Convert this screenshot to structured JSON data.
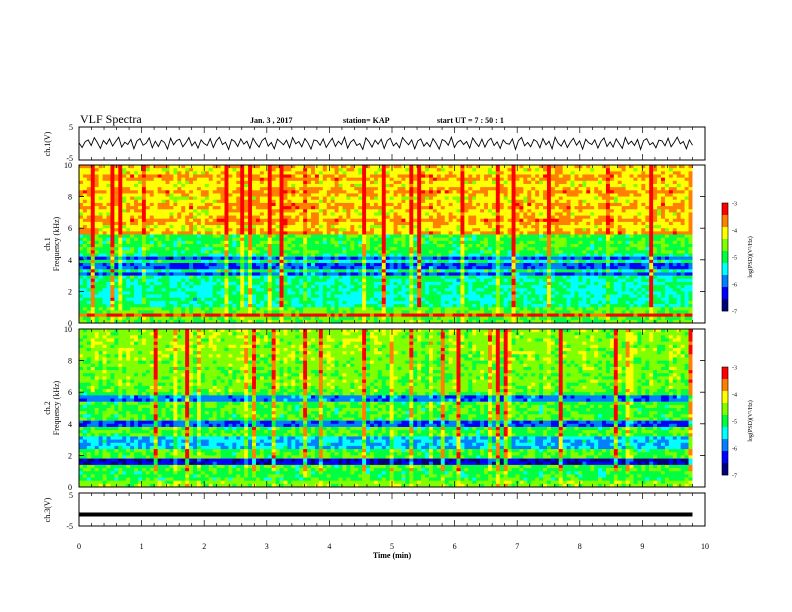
{
  "header": {
    "title": "VLF Spectra",
    "date": "Jan. 3 , 2017",
    "station": "station= KAP",
    "start_ut": "start UT =  7 : 50 : 1"
  },
  "chart_data": [
    {
      "id": "ch1-waveform",
      "type": "line",
      "ylabel": "ch.1(V)",
      "ylim": [
        -5,
        5
      ],
      "yticks": [
        "5",
        "-5"
      ],
      "xlim": [
        0,
        10
      ],
      "series": [
        {
          "values_note": "noisy waveform, roughly between -2 and 2 V with spikes",
          "x_step_min": 0.05,
          "y": [
            0.2,
            -1.2,
            0.5,
            1.1,
            -0.6,
            1.8,
            0.3,
            -1.5,
            0.9,
            -0.2,
            1.4,
            -0.8,
            0.6,
            1.9,
            -1.1,
            0.4,
            -0.3,
            1.2,
            -1.6,
            0.8,
            1.5,
            -0.5,
            0.1,
            1.7,
            -1.3,
            0.7,
            -0.9,
            1.0,
            0.3,
            -1.7,
            1.6,
            -0.4,
            0.9,
            1.3,
            -1.0,
            0.2,
            1.8,
            -0.7,
            0.5,
            -1.4,
            1.1,
            0.0,
            -0.6,
            1.5,
            -1.2,
            0.8,
            1.9,
            -0.3,
            0.4,
            -1.8,
            1.2,
            0.6,
            -0.9,
            1.4,
            -0.2,
            0.7,
            -1.5,
            1.6,
            0.1,
            -1.1,
            0.9,
            1.7,
            -0.8,
            0.3,
            -1.6,
            1.3,
            0.5,
            -0.4,
            1.0,
            -1.3,
            1.8,
            -0.1,
            0.6,
            -1.0,
            1.5,
            0.2,
            -1.7,
            1.1,
            0.8,
            -0.5,
            1.4,
            -1.2,
            0.3,
            1.6,
            -0.9,
            0.7,
            -0.3,
            1.9,
            -1.4,
            0.4,
            1.2,
            -0.6,
            0.0,
            -1.8,
            1.7,
            0.5,
            -1.1,
            1.0,
            -0.2,
            1.3,
            -1.5,
            0.9,
            1.6,
            -0.7,
            0.2,
            -1.3,
            1.8,
            0.6,
            -0.4,
            1.1,
            -1.6,
            0.8,
            1.4,
            -0.8,
            0.3,
            -1.0,
            1.5,
            0.1,
            -1.7,
            1.2,
            0.7,
            -0.5,
            1.9,
            -1.2,
            0.4,
            1.0,
            -0.3,
            0.6,
            -1.4,
            1.7,
            0.2,
            -0.9,
            1.3,
            -1.1,
            0.8,
            1.6,
            -0.6,
            0.5,
            -1.5,
            1.1,
            0.0,
            -0.2,
            1.4,
            -1.8,
            0.9,
            1.8,
            -0.7,
            0.3,
            -1.0,
            1.2,
            0.6,
            -1.3,
            1.5,
            -0.4,
            0.7,
            -1.6,
            1.9,
            0.1,
            -0.8,
            1.0,
            -1.2,
            0.4,
            1.6,
            -0.5,
            0.8,
            -1.7,
            1.3,
            0.2,
            -0.3,
            1.1,
            -1.4,
            0.6,
            1.7,
            -0.9,
            0.5,
            -1.1,
            1.4,
            0.0,
            -1.5,
            1.8,
            -0.2,
            0.7,
            -0.6,
            1.2,
            -1.8,
            0.9,
            1.5,
            -0.4,
            0.3,
            -1.3,
            1.0,
            0.8,
            -0.7,
            1.6,
            -1.0,
            0.4,
            1.9,
            -0.1,
            0.6,
            -1.6,
            1.1,
            -0.5
          ]
        }
      ]
    },
    {
      "id": "ch1-spectrogram",
      "type": "heatmap",
      "ylabel": "ch.1",
      "ylabel2": "Frequency (kHz)",
      "ylim": [
        0,
        10
      ],
      "yticks": [
        "0",
        "2",
        "4",
        "6",
        "8",
        "10"
      ],
      "xlim": [
        0,
        10
      ],
      "colorbar": {
        "label": "log(PSD)(V²/Hz)",
        "range": [
          -7,
          -3
        ],
        "ticks": [
          "-3",
          "-4",
          "-5",
          "-6",
          "-7"
        ]
      },
      "spectrum_profile": "high power (yellow-red) above ~5.5 kHz with vertical bursts; green 5-4.5 kHz; blue bands near 3-4.2 kHz; red lines near 2.2 kHz and 0.5 kHz"
    },
    {
      "id": "ch2-spectrogram",
      "type": "heatmap",
      "ylabel": "ch.2",
      "ylabel2": "Frequency (kHz)",
      "ylim": [
        0,
        10
      ],
      "yticks": [
        "0",
        "2",
        "4",
        "6",
        "8",
        "10"
      ],
      "xlim": [
        0,
        10
      ],
      "colorbar": {
        "label": "log(PSD)(V²/Hz)",
        "range": [
          -7,
          -3
        ],
        "ticks": [
          "-3",
          "-4",
          "-5",
          "-6",
          "-7"
        ]
      },
      "spectrum_profile": "mostly green-yellow with vertical bursts; blue bands near 5.5, 4 and 2.5-3 kHz; strong dark-blue band near 1.5 kHz"
    },
    {
      "id": "ch3-waveform",
      "type": "line",
      "ylabel": "ch.3(V)",
      "ylim": [
        -5,
        5
      ],
      "yticks": [
        "5",
        "-5"
      ],
      "xlim": [
        0,
        10
      ],
      "series": [
        {
          "y_constant": -1.5
        }
      ]
    }
  ],
  "xaxis": {
    "label": "Time (min)",
    "ticks": [
      "0",
      "1",
      "2",
      "3",
      "4",
      "5",
      "6",
      "7",
      "8",
      "9",
      "10"
    ]
  },
  "colors": {
    "colormap": [
      "#00007a",
      "#0000ff",
      "#0080ff",
      "#00ffff",
      "#00ff40",
      "#80ff00",
      "#ffff00",
      "#ff8000",
      "#ff0000"
    ]
  }
}
